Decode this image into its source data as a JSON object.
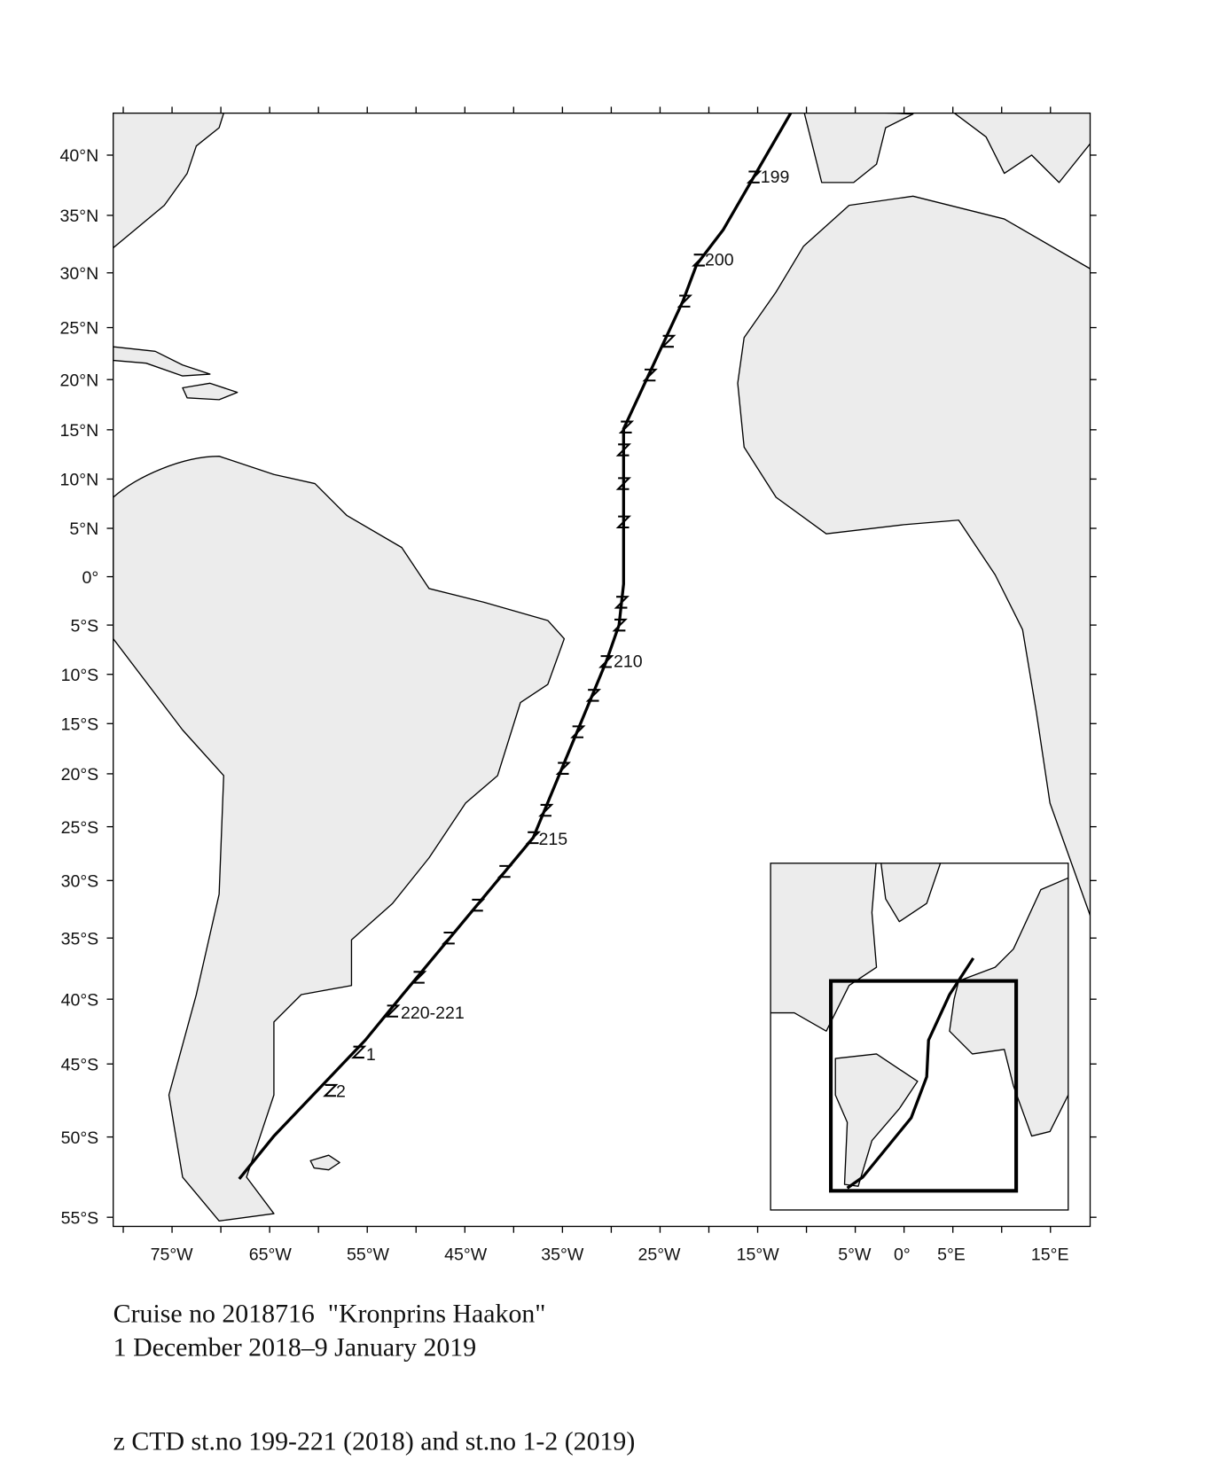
{
  "map": {
    "lat_labels": [
      "40°N",
      "35°N",
      "30°N",
      "25°N",
      "20°N",
      "15°N",
      "10°N",
      "5°N",
      "0°",
      "5°S",
      "10°S",
      "15°S",
      "20°S",
      "25°S",
      "30°S",
      "35°S",
      "40°S",
      "45°S",
      "50°S",
      "55°S"
    ],
    "lon_labels": [
      "75°W",
      "65°W",
      "55°W",
      "45°W",
      "35°W",
      "25°W",
      "15°W",
      "5°W",
      "0°",
      "5°E",
      "15°E"
    ],
    "station_labels": [
      "199",
      "200",
      "210",
      "215",
      "220-221",
      "1",
      "2"
    ]
  },
  "caption": {
    "line1": "Cruise no 2018716  \"Kronprins Haakon\"",
    "line2": "1 December 2018–9 January 2019",
    "legend": "z CTD st.no 199-221 (2018) and st.no 1-2 (2019)"
  }
}
